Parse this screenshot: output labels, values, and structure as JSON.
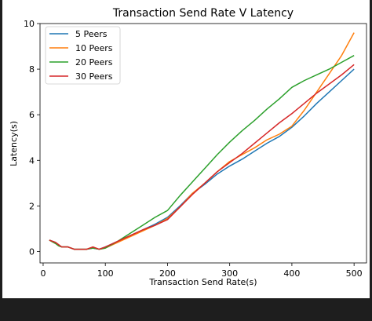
{
  "chart_data": {
    "type": "line",
    "title": "Transaction Send Rate V Latency",
    "xlabel": "Transaction Send Rate(s)",
    "ylabel": "Latency(s)",
    "xlim": [
      -5,
      520
    ],
    "ylim": [
      -0.5,
      10
    ],
    "xticks": [
      0,
      100,
      200,
      300,
      400,
      500
    ],
    "xtick_labels": [
      "0",
      "100",
      "200",
      "300",
      "400",
      "500"
    ],
    "yticks": [
      0,
      2,
      4,
      6,
      8,
      10
    ],
    "ytick_labels": [
      "0",
      "2",
      "4",
      "6",
      "8",
      "10"
    ],
    "grid": false,
    "legend_position": "upper-left",
    "series": [
      {
        "name": "5 Peers",
        "color": "#1f77b4",
        "points": [
          [
            10,
            0.5
          ],
          [
            20,
            0.4
          ],
          [
            25,
            0.25
          ],
          [
            30,
            0.2
          ],
          [
            40,
            0.2
          ],
          [
            50,
            0.1
          ],
          [
            60,
            0.1
          ],
          [
            70,
            0.1
          ],
          [
            80,
            0.15
          ],
          [
            90,
            0.1
          ],
          [
            100,
            0.2
          ],
          [
            120,
            0.45
          ],
          [
            140,
            0.7
          ],
          [
            160,
            0.95
          ],
          [
            180,
            1.2
          ],
          [
            200,
            1.5
          ],
          [
            220,
            2.0
          ],
          [
            240,
            2.55
          ],
          [
            260,
            2.95
          ],
          [
            280,
            3.4
          ],
          [
            300,
            3.75
          ],
          [
            320,
            4.05
          ],
          [
            340,
            4.4
          ],
          [
            360,
            4.75
          ],
          [
            380,
            5.05
          ],
          [
            400,
            5.45
          ],
          [
            420,
            5.95
          ],
          [
            440,
            6.5
          ],
          [
            460,
            7.0
          ],
          [
            480,
            7.5
          ],
          [
            500,
            8.0
          ]
        ]
      },
      {
        "name": "10 Peers",
        "color": "#ff7f0e",
        "points": [
          [
            10,
            0.5
          ],
          [
            20,
            0.35
          ],
          [
            25,
            0.25
          ],
          [
            30,
            0.2
          ],
          [
            40,
            0.2
          ],
          [
            50,
            0.1
          ],
          [
            60,
            0.1
          ],
          [
            70,
            0.1
          ],
          [
            80,
            0.2
          ],
          [
            90,
            0.1
          ],
          [
            100,
            0.15
          ],
          [
            120,
            0.4
          ],
          [
            140,
            0.65
          ],
          [
            160,
            0.9
          ],
          [
            180,
            1.15
          ],
          [
            200,
            1.45
          ],
          [
            220,
            1.95
          ],
          [
            240,
            2.55
          ],
          [
            260,
            3.0
          ],
          [
            280,
            3.5
          ],
          [
            300,
            3.95
          ],
          [
            320,
            4.25
          ],
          [
            340,
            4.55
          ],
          [
            360,
            4.9
          ],
          [
            380,
            5.15
          ],
          [
            400,
            5.5
          ],
          [
            420,
            6.2
          ],
          [
            440,
            7.0
          ],
          [
            460,
            7.8
          ],
          [
            480,
            8.6
          ],
          [
            500,
            9.6
          ]
        ]
      },
      {
        "name": "20 Peers",
        "color": "#2ca02c",
        "points": [
          [
            10,
            0.5
          ],
          [
            20,
            0.35
          ],
          [
            25,
            0.25
          ],
          [
            30,
            0.2
          ],
          [
            40,
            0.2
          ],
          [
            50,
            0.1
          ],
          [
            60,
            0.1
          ],
          [
            70,
            0.1
          ],
          [
            80,
            0.15
          ],
          [
            90,
            0.1
          ],
          [
            100,
            0.15
          ],
          [
            120,
            0.45
          ],
          [
            140,
            0.8
          ],
          [
            160,
            1.15
          ],
          [
            180,
            1.5
          ],
          [
            200,
            1.8
          ],
          [
            220,
            2.45
          ],
          [
            240,
            3.05
          ],
          [
            260,
            3.65
          ],
          [
            280,
            4.25
          ],
          [
            300,
            4.8
          ],
          [
            320,
            5.3
          ],
          [
            340,
            5.75
          ],
          [
            360,
            6.25
          ],
          [
            380,
            6.7
          ],
          [
            400,
            7.2
          ],
          [
            420,
            7.5
          ],
          [
            440,
            7.75
          ],
          [
            460,
            8.0
          ],
          [
            480,
            8.3
          ],
          [
            500,
            8.6
          ]
        ]
      },
      {
        "name": "30 Peers",
        "color": "#d62728",
        "points": [
          [
            10,
            0.5
          ],
          [
            20,
            0.4
          ],
          [
            25,
            0.3
          ],
          [
            30,
            0.2
          ],
          [
            40,
            0.2
          ],
          [
            50,
            0.1
          ],
          [
            60,
            0.1
          ],
          [
            70,
            0.1
          ],
          [
            80,
            0.2
          ],
          [
            90,
            0.1
          ],
          [
            100,
            0.2
          ],
          [
            120,
            0.45
          ],
          [
            140,
            0.7
          ],
          [
            160,
            0.95
          ],
          [
            180,
            1.15
          ],
          [
            200,
            1.4
          ],
          [
            220,
            1.95
          ],
          [
            240,
            2.5
          ],
          [
            260,
            3.0
          ],
          [
            280,
            3.5
          ],
          [
            300,
            3.9
          ],
          [
            320,
            4.3
          ],
          [
            340,
            4.75
          ],
          [
            360,
            5.2
          ],
          [
            380,
            5.65
          ],
          [
            400,
            6.05
          ],
          [
            420,
            6.5
          ],
          [
            440,
            6.95
          ],
          [
            460,
            7.35
          ],
          [
            480,
            7.75
          ],
          [
            500,
            8.2
          ]
        ]
      }
    ]
  }
}
